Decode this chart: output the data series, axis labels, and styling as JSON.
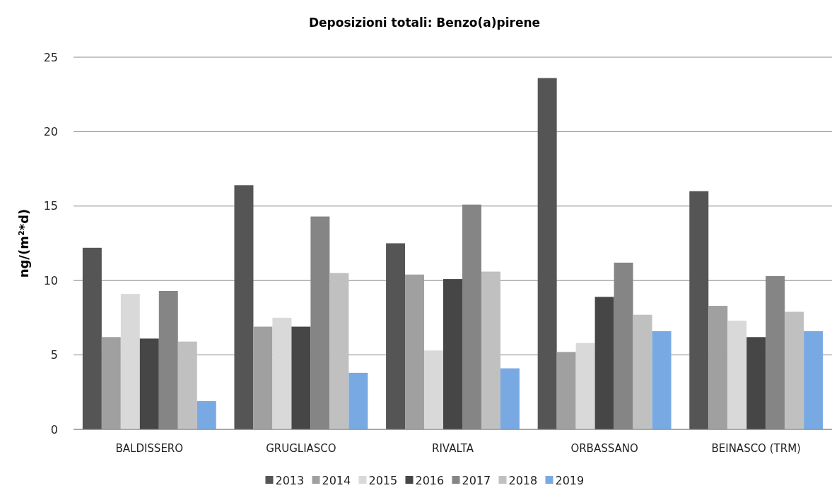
{
  "chart_data": {
    "type": "bar",
    "title": "Deposizioni totali: Benzo(a)pirene",
    "ylabel": "ng/(m²*d)",
    "categories": [
      "BALDISSERO",
      "GRUGLIASCO",
      "RIVALTA",
      "ORBASSANO",
      "BEINASCO (TRM)"
    ],
    "series": [
      {
        "name": "2013",
        "color": "#555555",
        "values": [
          12.2,
          16.4,
          12.5,
          23.6,
          16.0
        ]
      },
      {
        "name": "2014",
        "color": "#a0a0a0",
        "values": [
          6.2,
          6.9,
          10.4,
          5.2,
          8.3
        ]
      },
      {
        "name": "2015",
        "color": "#d9d9d9",
        "values": [
          9.1,
          7.5,
          5.3,
          5.8,
          7.3
        ]
      },
      {
        "name": "2016",
        "color": "#464646",
        "values": [
          6.1,
          6.9,
          10.1,
          8.9,
          6.2
        ]
      },
      {
        "name": "2017",
        "color": "#858585",
        "values": [
          9.3,
          14.3,
          15.1,
          11.2,
          10.3
        ]
      },
      {
        "name": "2018",
        "color": "#c0c0c0",
        "values": [
          5.9,
          10.5,
          10.6,
          7.7,
          7.9
        ]
      },
      {
        "name": "2019",
        "color": "#78a9e2",
        "values": [
          1.9,
          3.8,
          4.1,
          6.6,
          6.6
        ]
      }
    ],
    "ylim": [
      0,
      25
    ],
    "yticks": [
      0,
      5,
      10,
      15,
      20,
      25
    ],
    "grid": "y",
    "legend": "bottom"
  }
}
